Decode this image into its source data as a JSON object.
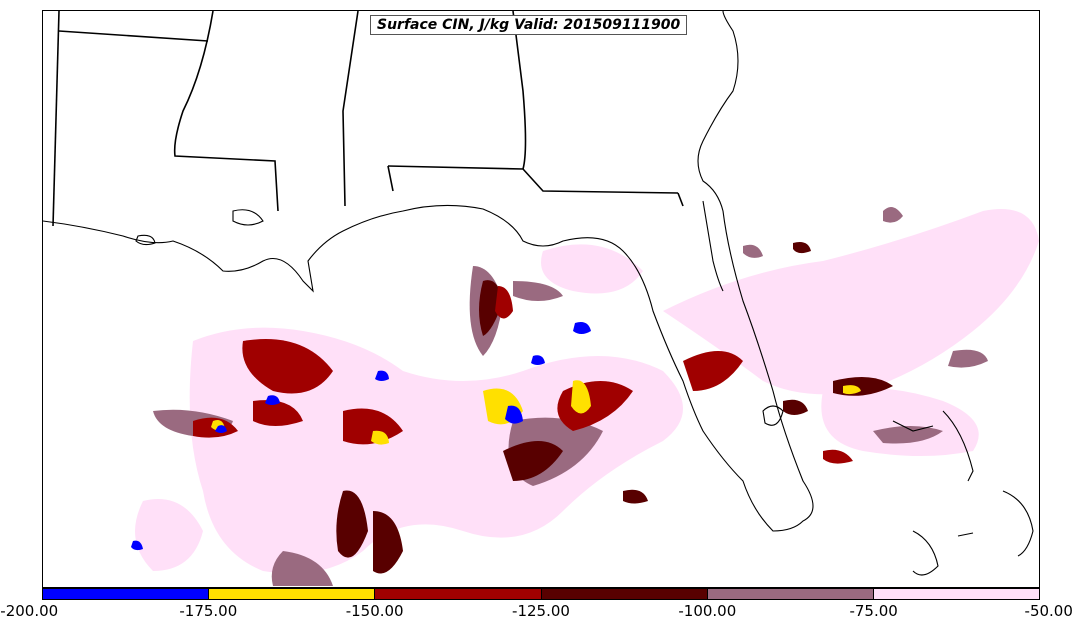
{
  "title": "Surface CIN, J/kg Valid: 201509111900",
  "colorbar": {
    "labels": [
      "-200.00",
      "-175.00",
      "-150.00",
      "-125.00",
      "-100.00",
      "-75.00",
      "-50.00"
    ],
    "colors": [
      "#0000ff",
      "#ffe000",
      "#a00000",
      "#580000",
      "#9a6a80",
      "#ffe0f8"
    ]
  }
}
